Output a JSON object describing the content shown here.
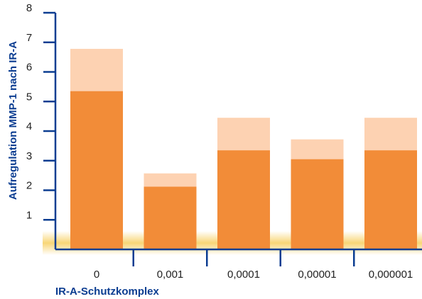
{
  "chart_data": {
    "type": "bar",
    "categories": [
      "0",
      "0,001",
      "0,0001",
      "0,00001",
      "0,000001"
    ],
    "series": [
      {
        "values": [
          5.35,
          2.12,
          3.35,
          3.05,
          3.35
        ]
      },
      {
        "values": [
          6.78,
          2.57,
          4.45,
          3.72,
          4.45
        ]
      }
    ],
    "ylabel": "Aufregulation MMP-1 nach IR-A",
    "xlabel": "IR-A-Schutzkomplex",
    "ylim": [
      0,
      8
    ],
    "yticks": [
      1,
      2,
      3,
      4,
      5,
      6,
      7,
      8
    ],
    "grid": false,
    "colors": {
      "bar_main": "#f28c38",
      "bar_upper": "#fdd2b2",
      "axis": "#0b3d91",
      "glow": "#f6c84a"
    }
  }
}
